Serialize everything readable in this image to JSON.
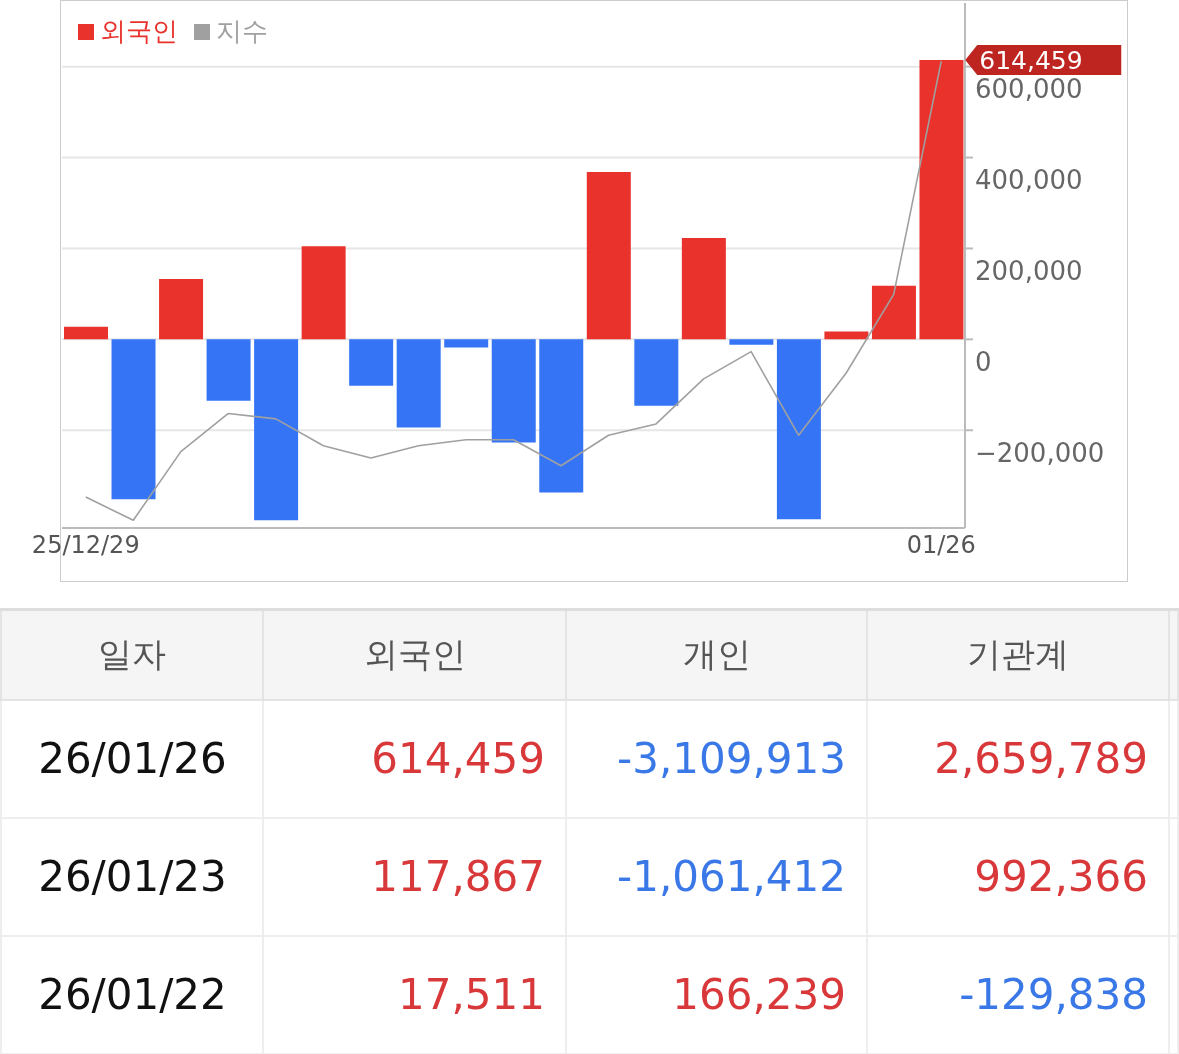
{
  "chart_data": [
    {
      "type": "bar",
      "categories": [
        "25/12/29",
        null,
        null,
        null,
        null,
        null,
        null,
        null,
        null,
        null,
        null,
        null,
        null,
        null,
        null,
        null,
        null,
        null,
        "01/26"
      ],
      "series": [
        {
          "name": "외국인",
          "type": "bar",
          "color": "#e8322b",
          "colors": [
            "#e8322b",
            "#3575f5",
            "#e8322b",
            "#3575f5",
            "#3575f5",
            "#e8322b",
            "#3575f5",
            "#3575f5",
            "#3575f5",
            "#3575f5",
            "#3575f5",
            "#e8322b",
            "#3575f5",
            "#e8322b",
            "#3575f5",
            "#3575f5",
            "#e8322b",
            "#e8322b",
            "#e8322b"
          ],
          "values": [
            28000,
            -352000,
            133000,
            -135000,
            -398000,
            205000,
            -102000,
            -194000,
            -18000,
            -227000,
            -337000,
            368000,
            -146000,
            223000,
            -12000,
            -396000,
            17511,
            117867,
            614459
          ]
        },
        {
          "name": "지수",
          "type": "line",
          "color": "#a0a0a0",
          "values": [
            -347000,
            -398000,
            -247000,
            -163000,
            -175000,
            -234000,
            -261000,
            -234000,
            -221000,
            -221000,
            -278000,
            -211000,
            -186000,
            -87000,
            -27000,
            -211000,
            -74000,
            99000,
            612000
          ]
        }
      ],
      "ylim": [
        -415000,
        740000
      ],
      "yticks": [
        {
          "value": -200000,
          "label": "−200,000"
        },
        {
          "value": 0,
          "label": "0"
        },
        {
          "value": 200000,
          "label": "200,000"
        },
        {
          "value": 400000,
          "label": "400,000"
        },
        {
          "value": 600000,
          "label": "600,000"
        }
      ],
      "annotations": [
        {
          "text": "614,459",
          "x": "01/26",
          "y": 614459
        }
      ],
      "grid": "y",
      "legend": "top left"
    },
    {
      "type": "other",
      "categories": [
        "일자",
        "외국인",
        "개인",
        "기관계"
      ],
      "cell_labels": [
        [
          "26/01/26",
          "614,459",
          "-3,109,913",
          "2,659,789"
        ],
        [
          "26/01/23",
          "117,867",
          "-1,061,412",
          "992,366"
        ],
        [
          "26/01/22",
          "17,511",
          "166,239",
          "-129,838"
        ]
      ]
    }
  ]
}
